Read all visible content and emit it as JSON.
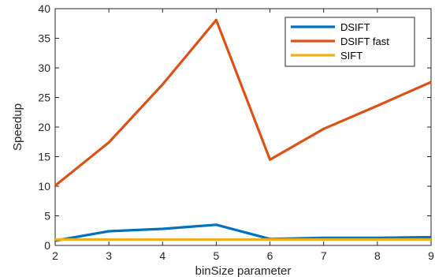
{
  "chart_data": {
    "type": "line",
    "title": "",
    "xlabel": "binSize parameter",
    "ylabel": "Speedup",
    "x": [
      2,
      3,
      4,
      5,
      6,
      7,
      8,
      9
    ],
    "xlim": [
      2,
      9
    ],
    "ylim": [
      0,
      40
    ],
    "xticks": [
      "2",
      "3",
      "4",
      "5",
      "6",
      "7",
      "8",
      "9"
    ],
    "yticks": [
      "0",
      "5",
      "10",
      "15",
      "20",
      "25",
      "30",
      "35",
      "40"
    ],
    "grid": false,
    "legend_position": "top-right",
    "series": [
      {
        "name": "DSIFT",
        "color": "#0072BD",
        "values": [
          0.8,
          2.4,
          2.8,
          3.5,
          1.1,
          1.3,
          1.3,
          1.4
        ]
      },
      {
        "name": "DSIFT fast",
        "color": "#D95319",
        "values": [
          10.1,
          17.4,
          27.2,
          38.1,
          14.5,
          19.7,
          23.6,
          27.6
        ]
      },
      {
        "name": "SIFT",
        "color": "#EDB120",
        "values": [
          1,
          1,
          1,
          1,
          1,
          1,
          1,
          1
        ]
      }
    ]
  }
}
